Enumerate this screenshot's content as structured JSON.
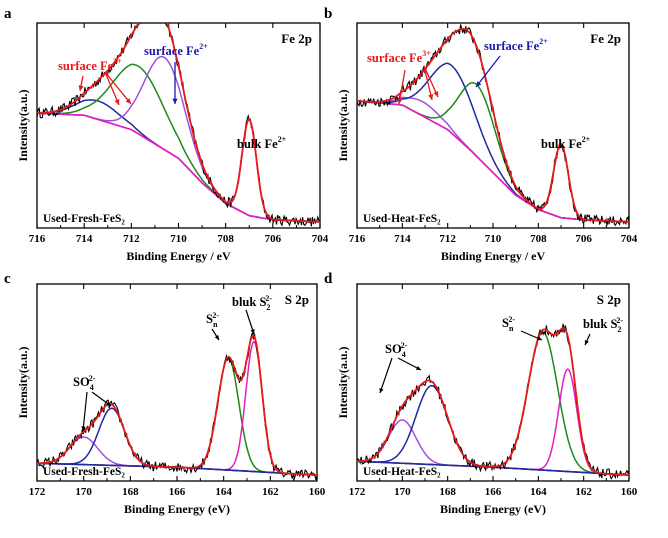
{
  "chart_data": [
    {
      "type": "line",
      "panel": "a",
      "corner_label": "Fe 2p",
      "sample_label": "Used-Fresh-FeS₂",
      "xlabel": "Binding Energy / eV",
      "ylabel": "Intensity(a.u.)",
      "xlim": [
        716,
        704
      ],
      "x_reversed": true,
      "xticks": [
        716,
        714,
        712,
        710,
        708,
        706,
        704
      ],
      "ylim": [
        0,
        1
      ],
      "y_ticks_shown": false,
      "grid": false,
      "baseline": {
        "x": [
          716,
          714,
          712,
          710,
          709,
          708,
          707,
          706,
          704
        ],
        "y": [
          0.56,
          0.55,
          0.48,
          0.34,
          0.22,
          0.12,
          0.06,
          0.04,
          0.03
        ]
      },
      "peaks": [
        {
          "center": 713.4,
          "height": 0.09,
          "width": 0.9,
          "color": "#1f2a9c",
          "onset": "auto"
        },
        {
          "center": 711.7,
          "height": 0.33,
          "width": 1.1,
          "color": "#1a8a1a"
        },
        {
          "center": 710.6,
          "height": 0.45,
          "width": 0.85,
          "color": "#a050e0"
        },
        {
          "center": 707.0,
          "height": 0.47,
          "width": 0.3,
          "color": "#e020c0"
        }
      ],
      "annotations": [
        {
          "base": "surface Fe",
          "sup": "3+",
          "color": "#e8191a",
          "arrow_from": [
            714.3,
            0.83
          ],
          "arrow_to": [
            713.5,
            0.63
          ],
          "arrow2_from": [
            713.0,
            0.83
          ],
          "arrow2_to": [
            712.6,
            0.73
          ]
        },
        {
          "base": "surface Fe",
          "sup": "2+",
          "color": "#1a1ab0",
          "arrow_from": [
            710.6,
            0.9
          ],
          "arrow_to": [
            710.6,
            0.67
          ]
        },
        {
          "base": "bulk Fe",
          "sup": "2+",
          "color": "#000000"
        }
      ],
      "colors": {
        "envelope": "#e8191a",
        "raw": "#000000",
        "baseline": "#e020c0"
      }
    },
    {
      "type": "line",
      "panel": "b",
      "corner_label": "Fe 2p",
      "sample_label": "Used-Heat-FeS₂",
      "xlabel": "Binding Energy / eV",
      "ylabel": "Intensity(a.u.)",
      "xlim": [
        716,
        704
      ],
      "x_reversed": true,
      "xticks": [
        716,
        714,
        712,
        710,
        708,
        706,
        704
      ],
      "ylim": [
        0,
        1
      ],
      "y_ticks_shown": false,
      "grid": false,
      "baseline": {
        "x": [
          716,
          714,
          712,
          711,
          710,
          709,
          708,
          707,
          706,
          704
        ],
        "y": [
          0.62,
          0.6,
          0.48,
          0.38,
          0.27,
          0.16,
          0.09,
          0.05,
          0.04,
          0.03
        ]
      },
      "peaks": [
        {
          "center": 713.1,
          "height": 0.07,
          "width": 0.8,
          "color": "#a050e0"
        },
        {
          "center": 711.8,
          "height": 0.33,
          "width": 1.0,
          "color": "#1f2a9c"
        },
        {
          "center": 710.7,
          "height": 0.35,
          "width": 0.8,
          "color": "#1a8a1a"
        },
        {
          "center": 707.0,
          "height": 0.36,
          "width": 0.32,
          "color": "#e020c0"
        }
      ],
      "annotations": [
        {
          "base": "surface Fe",
          "sup": "3+",
          "color": "#e8191a"
        },
        {
          "base": "surface Fe",
          "sup": "2+",
          "color": "#1a1ab0"
        },
        {
          "base": "bulk Fe",
          "sup": "2+",
          "color": "#000000"
        }
      ],
      "colors": {
        "envelope": "#e8191a",
        "raw": "#000000",
        "baseline": "#e020c0"
      }
    },
    {
      "type": "line",
      "panel": "c",
      "corner_label": "S 2p",
      "sample_label": "Used-Fresh-FeS₂",
      "xlabel": "Binding Energy (eV)",
      "ylabel": "Intensity(a.u.)",
      "xlim": [
        172,
        160
      ],
      "x_reversed": true,
      "xticks": [
        172,
        170,
        168,
        166,
        164,
        162,
        160
      ],
      "ylim": [
        0,
        1
      ],
      "y_ticks_shown": false,
      "grid": false,
      "baseline": {
        "x": [
          172,
          166,
          160
        ],
        "y": [
          0.09,
          0.07,
          0.03
        ]
      },
      "peaks": [
        {
          "center": 170.0,
          "height": 0.14,
          "width": 0.6,
          "color": "#a050e0"
        },
        {
          "center": 168.8,
          "height": 0.29,
          "width": 0.55,
          "color": "#1f2a9c"
        },
        {
          "center": 163.8,
          "height": 0.57,
          "width": 0.45,
          "color": "#1a8a1a"
        },
        {
          "center": 162.7,
          "height": 0.66,
          "width": 0.35,
          "color": "#e020c0"
        }
      ],
      "annotations": [
        {
          "base": "SO",
          "sub": "4",
          "sup": "2-",
          "color": "#000000"
        },
        {
          "base": "S",
          "sub": "n",
          "sup": "2-",
          "color": "#000000"
        },
        {
          "base": "bluk S",
          "sub": "2",
          "sup": "2-",
          "color": "#000000"
        }
      ],
      "colors": {
        "envelope": "#e8191a",
        "raw": "#000000",
        "baseline": "#1f2a9c"
      }
    },
    {
      "type": "line",
      "panel": "d",
      "corner_label": "S 2p",
      "sample_label": "Used-Heat-FeS₂",
      "xlabel": "Binding Energy (eV)",
      "ylabel": "Intensity(a.u.)",
      "xlim": [
        172,
        160
      ],
      "x_reversed": true,
      "xticks": [
        172,
        170,
        168,
        166,
        164,
        162,
        160
      ],
      "ylim": [
        0,
        1
      ],
      "y_ticks_shown": false,
      "grid": false,
      "baseline": {
        "x": [
          172,
          166,
          160
        ],
        "y": [
          0.1,
          0.07,
          0.03
        ]
      },
      "peaks": [
        {
          "center": 170.0,
          "height": 0.22,
          "width": 0.6,
          "color": "#a050e0"
        },
        {
          "center": 168.7,
          "height": 0.4,
          "width": 0.7,
          "color": "#1f2a9c"
        },
        {
          "center": 163.8,
          "height": 0.7,
          "width": 0.65,
          "color": "#1a8a1a"
        },
        {
          "center": 162.7,
          "height": 0.52,
          "width": 0.4,
          "color": "#e020c0"
        }
      ],
      "annotations": [
        {
          "base": "SO",
          "sub": "4",
          "sup": "2-",
          "color": "#000000"
        },
        {
          "base": "S",
          "sub": "n",
          "sup": "2-",
          "color": "#000000"
        },
        {
          "base": "bluk S",
          "sub": "2",
          "sup": "2-",
          "color": "#000000"
        }
      ],
      "colors": {
        "envelope": "#e8191a",
        "raw": "#000000",
        "baseline": "#1f2a9c"
      }
    }
  ]
}
